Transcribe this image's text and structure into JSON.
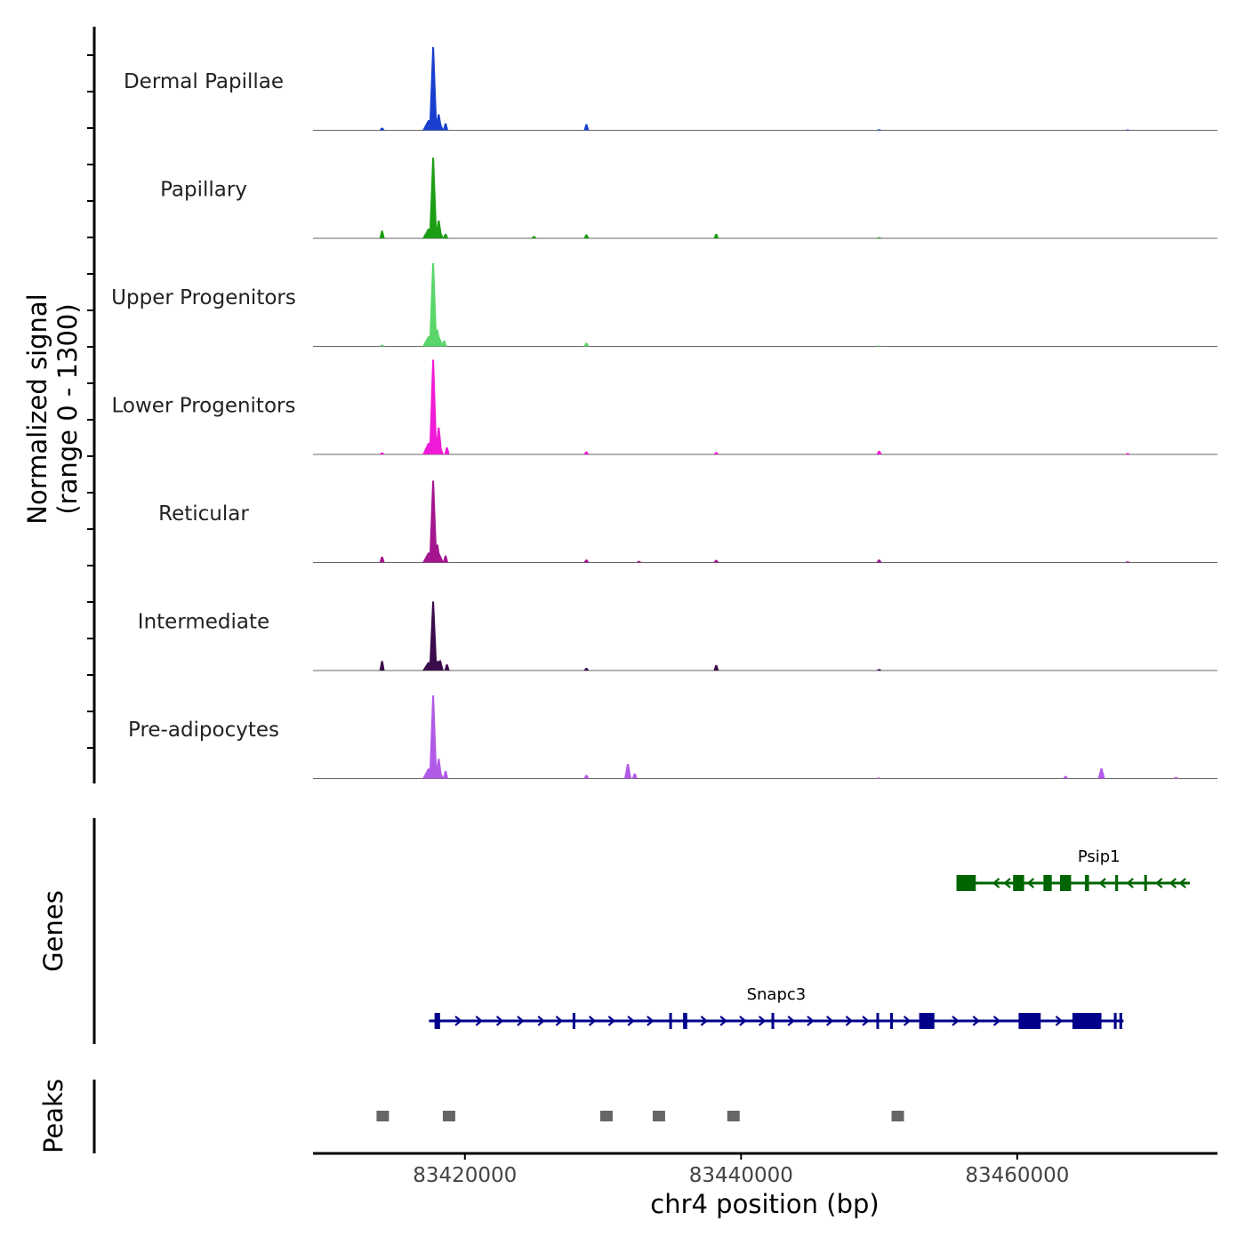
{
  "chart_data": {
    "type": "coverage",
    "ylabel": "Normalized signal",
    "ylabel_range": "(range 0 - 1300)",
    "y_range": [
      0,
      1300
    ],
    "xlabel": "chr4 position (bp)",
    "x_range": [
      83409000,
      83474500
    ],
    "x_ticks": [
      83420000,
      83440000,
      83460000
    ],
    "x_tick_labels": [
      "83420000",
      "83440000",
      "83460000"
    ],
    "tracks": [
      {
        "name": "Dermal Papillae",
        "color": "#1a3fcf",
        "peaks": [
          [
            83414000,
            40
          ],
          [
            83417700,
            1300
          ],
          [
            83418100,
            250
          ],
          [
            83418600,
            110
          ],
          [
            83428800,
            95
          ],
          [
            83450000,
            15
          ],
          [
            83468000,
            12
          ]
        ]
      },
      {
        "name": "Papillary",
        "color": "#1b9e14",
        "peaks": [
          [
            83414000,
            120
          ],
          [
            83417700,
            1260
          ],
          [
            83418100,
            280
          ],
          [
            83418600,
            70
          ],
          [
            83425000,
            35
          ],
          [
            83428800,
            60
          ],
          [
            83438200,
            70
          ],
          [
            83450000,
            18
          ]
        ]
      },
      {
        "name": "Upper Progenitors",
        "color": "#5ad66a",
        "peaks": [
          [
            83414000,
            25
          ],
          [
            83417700,
            1300
          ],
          [
            83418000,
            260
          ],
          [
            83418500,
            90
          ],
          [
            83428800,
            55
          ],
          [
            83450000,
            12
          ]
        ]
      },
      {
        "name": "Lower Progenitors",
        "color": "#f01ad8",
        "peaks": [
          [
            83414000,
            30
          ],
          [
            83417700,
            1480
          ],
          [
            83418100,
            420
          ],
          [
            83418700,
            110
          ],
          [
            83428800,
            45
          ],
          [
            83438200,
            35
          ],
          [
            83450000,
            55
          ],
          [
            83468000,
            20
          ]
        ]
      },
      {
        "name": "Reticular",
        "color": "#a4158f",
        "peaks": [
          [
            83414000,
            90
          ],
          [
            83417700,
            1280
          ],
          [
            83418000,
            280
          ],
          [
            83418600,
            110
          ],
          [
            83428800,
            45
          ],
          [
            83432600,
            25
          ],
          [
            83438200,
            40
          ],
          [
            83450000,
            45
          ],
          [
            83468000,
            18
          ]
        ]
      },
      {
        "name": "Intermediate",
        "color": "#3b0c4c",
        "peaks": [
          [
            83414000,
            150
          ],
          [
            83417700,
            1080
          ],
          [
            83418200,
            160
          ],
          [
            83418700,
            95
          ],
          [
            83428800,
            40
          ],
          [
            83438200,
            85
          ],
          [
            83450000,
            22
          ]
        ]
      },
      {
        "name": "Pre-adipocytes",
        "color": "#b25ae8",
        "peaks": [
          [
            83417700,
            1300
          ],
          [
            83418100,
            310
          ],
          [
            83418600,
            120
          ],
          [
            83428800,
            55
          ],
          [
            83431800,
            230
          ],
          [
            83432300,
            80
          ],
          [
            83450000,
            15
          ],
          [
            83463500,
            40
          ],
          [
            83466100,
            160
          ],
          [
            83471500,
            25
          ]
        ]
      }
    ],
    "genes_label": "Genes",
    "genes": [
      {
        "name": "Psip1",
        "strand": "-",
        "color": "#006400",
        "start": 83455600,
        "end": 83472500,
        "exons": [
          [
            83455600,
            83457000
          ],
          [
            83459700,
            83460500
          ],
          [
            83461900,
            83462500
          ],
          [
            83463100,
            83463900
          ],
          [
            83464900,
            83465200
          ],
          [
            83467100,
            83467300
          ],
          [
            83469200,
            83469350
          ]
        ],
        "arrows": [
          83458500,
          83459300,
          83461000,
          83466200,
          83468200,
          83470300,
          83471300,
          83472000
        ]
      },
      {
        "name": "Snapc3",
        "strand": "+",
        "color": "#00008b",
        "start": 83417400,
        "end": 83467700,
        "exons": [
          [
            83417800,
            83418200
          ],
          [
            83427800,
            83427950
          ],
          [
            83434800,
            83434950
          ],
          [
            83435800,
            83436100
          ],
          [
            83442200,
            83442400
          ],
          [
            83449800,
            83449950
          ],
          [
            83450800,
            83451000
          ],
          [
            83452900,
            83454000
          ],
          [
            83460100,
            83461700
          ],
          [
            83464000,
            83466100
          ],
          [
            83467000,
            83467200
          ],
          [
            83467400,
            83467600
          ]
        ],
        "arrows": [
          83419500,
          83421000,
          83422500,
          83424000,
          83425500,
          83426800,
          83429200,
          83430600,
          83432000,
          83433400,
          83437300,
          83438700,
          83440100,
          83441500,
          83443600,
          83445000,
          83446400,
          83447800,
          83449000,
          83452000,
          83455500,
          83457000,
          83458500,
          83463000
        ]
      }
    ],
    "peaks_label": "Peaks",
    "peak_regions": [
      [
        83413600,
        83414500
      ],
      [
        83418400,
        83419300
      ],
      [
        83429800,
        83430700
      ],
      [
        83433600,
        83434500
      ],
      [
        83439000,
        83439900
      ],
      [
        83450900,
        83451800
      ]
    ]
  }
}
